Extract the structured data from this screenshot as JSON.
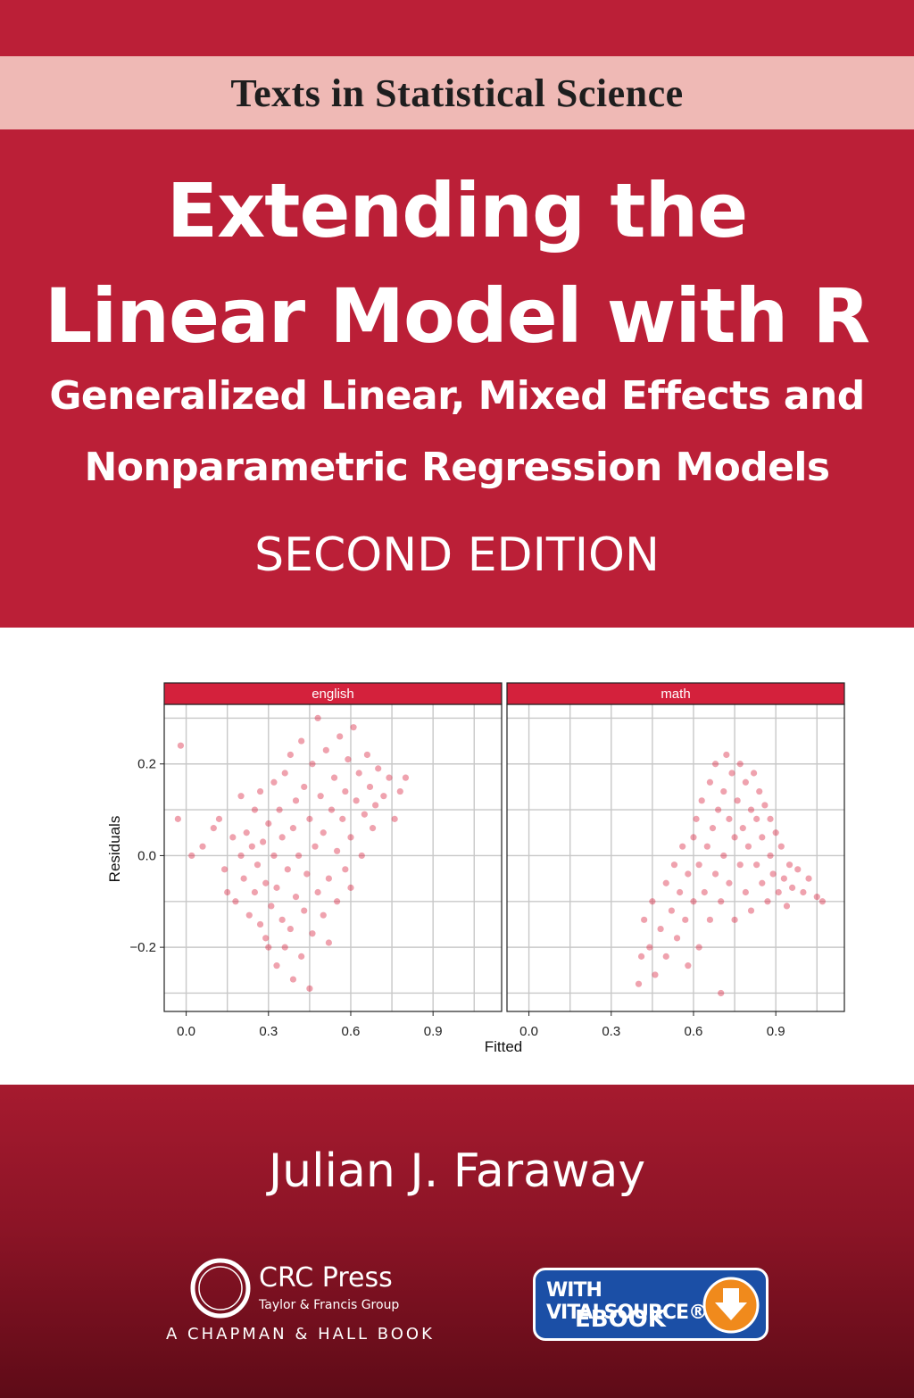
{
  "cover": {
    "series": "Texts in Statistical Science",
    "title_line1": "Extending the",
    "title_line2": "Linear Model with R",
    "subtitle_line1": "Generalized Linear, Mixed Effects and",
    "subtitle_line2": "Nonparametric Regression Models",
    "edition": "SECOND EDITION",
    "author": "Julian J. Faraway",
    "publisher": "CRC Press",
    "publisher_group": "Taylor & Francis Group",
    "imprint": "A CHAPMAN & HALL BOOK",
    "badge_line1": "WITH VITALSOURCE®",
    "badge_line2": "EBOOK",
    "colors": {
      "primary": "#bb1f37",
      "band": "#efb9b5",
      "points": "#d9213f",
      "badge": "#1b4fa6"
    }
  },
  "chart_data": {
    "type": "scatter",
    "xlabel": "Fitted",
    "ylabel": "Residuals",
    "panels": [
      {
        "strip": "english",
        "xlim": [
          -0.08,
          1.15
        ],
        "ylim": [
          -0.34,
          0.33
        ],
        "xticks": [
          "0.0",
          "0.3",
          "0.6",
          "0.9"
        ],
        "xtick_values": [
          0.0,
          0.3,
          0.6,
          0.9
        ],
        "yticks": [
          "0.2",
          "0.0",
          "−0.2"
        ],
        "ytick_values": [
          0.2,
          0.0,
          -0.2
        ],
        "points": [
          [
            -0.02,
            0.24
          ],
          [
            -0.03,
            0.08
          ],
          [
            0.02,
            0.0
          ],
          [
            0.06,
            0.02
          ],
          [
            0.1,
            0.06
          ],
          [
            0.12,
            0.08
          ],
          [
            0.14,
            -0.03
          ],
          [
            0.15,
            -0.08
          ],
          [
            0.17,
            0.04
          ],
          [
            0.18,
            -0.1
          ],
          [
            0.2,
            0.0
          ],
          [
            0.2,
            0.13
          ],
          [
            0.21,
            -0.05
          ],
          [
            0.22,
            0.05
          ],
          [
            0.23,
            -0.13
          ],
          [
            0.24,
            0.02
          ],
          [
            0.25,
            -0.08
          ],
          [
            0.25,
            0.1
          ],
          [
            0.26,
            -0.02
          ],
          [
            0.27,
            -0.15
          ],
          [
            0.27,
            0.14
          ],
          [
            0.28,
            0.03
          ],
          [
            0.29,
            -0.06
          ],
          [
            0.29,
            -0.18
          ],
          [
            0.3,
            0.07
          ],
          [
            0.3,
            -0.2
          ],
          [
            0.31,
            -0.11
          ],
          [
            0.32,
            0.16
          ],
          [
            0.32,
            0.0
          ],
          [
            0.33,
            -0.24
          ],
          [
            0.33,
            -0.07
          ],
          [
            0.34,
            0.1
          ],
          [
            0.35,
            -0.14
          ],
          [
            0.35,
            0.04
          ],
          [
            0.36,
            -0.2
          ],
          [
            0.36,
            0.18
          ],
          [
            0.37,
            -0.03
          ],
          [
            0.38,
            0.22
          ],
          [
            0.38,
            -0.16
          ],
          [
            0.39,
            0.06
          ],
          [
            0.39,
            -0.27
          ],
          [
            0.4,
            -0.09
          ],
          [
            0.4,
            0.12
          ],
          [
            0.41,
            0.0
          ],
          [
            0.42,
            -0.22
          ],
          [
            0.42,
            0.25
          ],
          [
            0.43,
            -0.12
          ],
          [
            0.43,
            0.15
          ],
          [
            0.44,
            -0.04
          ],
          [
            0.45,
            0.08
          ],
          [
            0.45,
            -0.29
          ],
          [
            0.46,
            0.2
          ],
          [
            0.46,
            -0.17
          ],
          [
            0.47,
            0.02
          ],
          [
            0.48,
            -0.08
          ],
          [
            0.48,
            0.3
          ],
          [
            0.49,
            0.13
          ],
          [
            0.5,
            -0.13
          ],
          [
            0.5,
            0.05
          ],
          [
            0.51,
            0.23
          ],
          [
            0.52,
            -0.05
          ],
          [
            0.52,
            -0.19
          ],
          [
            0.53,
            0.1
          ],
          [
            0.54,
            0.17
          ],
          [
            0.55,
            -0.1
          ],
          [
            0.55,
            0.01
          ],
          [
            0.56,
            0.26
          ],
          [
            0.57,
            0.08
          ],
          [
            0.58,
            -0.03
          ],
          [
            0.58,
            0.14
          ],
          [
            0.59,
            0.21
          ],
          [
            0.6,
            -0.07
          ],
          [
            0.6,
            0.04
          ],
          [
            0.61,
            0.28
          ],
          [
            0.62,
            0.12
          ],
          [
            0.63,
            0.18
          ],
          [
            0.64,
            0.0
          ],
          [
            0.65,
            0.09
          ],
          [
            0.66,
            0.22
          ],
          [
            0.67,
            0.15
          ],
          [
            0.68,
            0.06
          ],
          [
            0.69,
            0.11
          ],
          [
            0.7,
            0.19
          ],
          [
            0.72,
            0.13
          ],
          [
            0.74,
            0.17
          ],
          [
            0.76,
            0.08
          ],
          [
            0.78,
            0.14
          ],
          [
            0.8,
            0.17
          ]
        ]
      },
      {
        "strip": "math",
        "xlim": [
          -0.08,
          1.15
        ],
        "ylim": [
          -0.34,
          0.33
        ],
        "xticks": [
          "0.0",
          "0.3",
          "0.6",
          "0.9"
        ],
        "xtick_values": [
          0.0,
          0.3,
          0.6,
          0.9
        ],
        "yticks": [
          "0.2",
          "0.0",
          "−0.2"
        ],
        "ytick_values": [
          0.2,
          0.0,
          -0.2
        ],
        "points": [
          [
            0.4,
            -0.28
          ],
          [
            0.41,
            -0.22
          ],
          [
            0.42,
            -0.14
          ],
          [
            0.44,
            -0.2
          ],
          [
            0.45,
            -0.1
          ],
          [
            0.46,
            -0.26
          ],
          [
            0.48,
            -0.16
          ],
          [
            0.5,
            -0.06
          ],
          [
            0.5,
            -0.22
          ],
          [
            0.52,
            -0.12
          ],
          [
            0.53,
            -0.02
          ],
          [
            0.54,
            -0.18
          ],
          [
            0.55,
            -0.08
          ],
          [
            0.56,
            0.02
          ],
          [
            0.57,
            -0.14
          ],
          [
            0.58,
            -0.04
          ],
          [
            0.58,
            -0.24
          ],
          [
            0.6,
            0.04
          ],
          [
            0.6,
            -0.1
          ],
          [
            0.61,
            0.08
          ],
          [
            0.62,
            -0.2
          ],
          [
            0.62,
            -0.02
          ],
          [
            0.63,
            0.12
          ],
          [
            0.64,
            -0.08
          ],
          [
            0.65,
            0.02
          ],
          [
            0.66,
            0.16
          ],
          [
            0.66,
            -0.14
          ],
          [
            0.67,
            0.06
          ],
          [
            0.68,
            -0.04
          ],
          [
            0.68,
            0.2
          ],
          [
            0.69,
            0.1
          ],
          [
            0.7,
            -0.1
          ],
          [
            0.7,
            -0.3
          ],
          [
            0.71,
            0.0
          ],
          [
            0.71,
            0.14
          ],
          [
            0.72,
            0.22
          ],
          [
            0.73,
            -0.06
          ],
          [
            0.73,
            0.08
          ],
          [
            0.74,
            0.18
          ],
          [
            0.75,
            -0.14
          ],
          [
            0.75,
            0.04
          ],
          [
            0.76,
            0.12
          ],
          [
            0.77,
            -0.02
          ],
          [
            0.77,
            0.2
          ],
          [
            0.78,
            0.06
          ],
          [
            0.79,
            -0.08
          ],
          [
            0.79,
            0.16
          ],
          [
            0.8,
            0.02
          ],
          [
            0.81,
            0.1
          ],
          [
            0.81,
            -0.12
          ],
          [
            0.82,
            0.18
          ],
          [
            0.83,
            -0.02
          ],
          [
            0.83,
            0.08
          ],
          [
            0.84,
            0.14
          ],
          [
            0.85,
            -0.06
          ],
          [
            0.85,
            0.04
          ],
          [
            0.86,
            0.11
          ],
          [
            0.87,
            -0.1
          ],
          [
            0.88,
            0.0
          ],
          [
            0.88,
            0.08
          ],
          [
            0.89,
            -0.04
          ],
          [
            0.9,
            0.05
          ],
          [
            0.91,
            -0.08
          ],
          [
            0.92,
            0.02
          ],
          [
            0.93,
            -0.05
          ],
          [
            0.94,
            -0.11
          ],
          [
            0.95,
            -0.02
          ],
          [
            0.96,
            -0.07
          ],
          [
            0.98,
            -0.03
          ],
          [
            1.0,
            -0.08
          ],
          [
            1.02,
            -0.05
          ],
          [
            1.05,
            -0.09
          ],
          [
            1.07,
            -0.1
          ]
        ]
      }
    ]
  }
}
